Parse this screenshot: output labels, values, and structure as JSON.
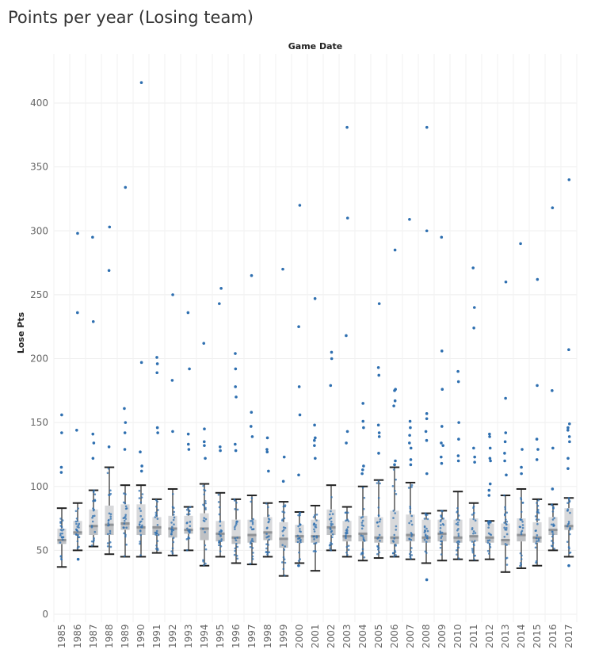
{
  "page": {
    "title": "Points per year (Losing team)"
  },
  "chart_data": {
    "type": "box",
    "title": "Points per year (Losing team)",
    "xlabel": "Game Date",
    "ylabel": "Lose Pts",
    "ylim": [
      0,
      430
    ],
    "yticks": [
      0,
      50,
      100,
      150,
      200,
      250,
      300,
      350,
      400
    ],
    "grid": true,
    "legend": "none",
    "colors": {
      "point": "#2e6fb0",
      "box_upper": "#d8d9db",
      "box_lower": "#bfc1c4",
      "median": "#8f9296",
      "whisker": "#222222"
    },
    "categories": [
      "1985",
      "1986",
      "1987",
      "1988",
      "1989",
      "1990",
      "1991",
      "1992",
      "1993",
      "1994",
      "1995",
      "1996",
      "1997",
      "1998",
      "1999",
      "2000",
      "2001",
      "2002",
      "2003",
      "2004",
      "2005",
      "2006",
      "2007",
      "2008",
      "2009",
      "2010",
      "2011",
      "2012",
      "2013",
      "2014",
      "2015",
      "2016",
      "2017"
    ],
    "boxes": [
      {
        "min": 37,
        "q1": 55,
        "median": 58,
        "q3": 67,
        "max": 83
      },
      {
        "min": 50,
        "q1": 62,
        "median": 64,
        "q3": 73,
        "max": 87
      },
      {
        "min": 53,
        "q1": 62,
        "median": 69,
        "q3": 82,
        "max": 97
      },
      {
        "min": 47,
        "q1": 62,
        "median": 70,
        "q3": 85,
        "max": 115
      },
      {
        "min": 45,
        "q1": 66,
        "median": 71,
        "q3": 86,
        "max": 101
      },
      {
        "min": 45,
        "q1": 62,
        "median": 68,
        "q3": 86,
        "max": 101
      },
      {
        "min": 48,
        "q1": 62,
        "median": 68,
        "q3": 76,
        "max": 90
      },
      {
        "min": 46,
        "q1": 60,
        "median": 67,
        "q3": 77,
        "max": 98
      },
      {
        "min": 50,
        "q1": 63,
        "median": 66,
        "q3": 77,
        "max": 84
      },
      {
        "min": 38,
        "q1": 58,
        "median": 67,
        "q3": 79,
        "max": 102
      },
      {
        "min": 45,
        "q1": 57,
        "median": 63,
        "q3": 73,
        "max": 95
      },
      {
        "min": 40,
        "q1": 55,
        "median": 60,
        "q3": 74,
        "max": 90
      },
      {
        "min": 39,
        "q1": 56,
        "median": 62,
        "q3": 74,
        "max": 93
      },
      {
        "min": 45,
        "q1": 58,
        "median": 64,
        "q3": 76,
        "max": 87
      },
      {
        "min": 30,
        "q1": 52,
        "median": 59,
        "q3": 72,
        "max": 88
      },
      {
        "min": 40,
        "q1": 56,
        "median": 61,
        "q3": 70,
        "max": 80
      },
      {
        "min": 34,
        "q1": 56,
        "median": 61,
        "q3": 74,
        "max": 85
      },
      {
        "min": 50,
        "q1": 62,
        "median": 68,
        "q3": 82,
        "max": 101
      },
      {
        "min": 45,
        "q1": 57,
        "median": 61,
        "q3": 73,
        "max": 84
      },
      {
        "min": 42,
        "q1": 57,
        "median": 63,
        "q3": 77,
        "max": 100
      },
      {
        "min": 44,
        "q1": 56,
        "median": 60,
        "q3": 76,
        "max": 105
      },
      {
        "min": 45,
        "q1": 55,
        "median": 60,
        "q3": 81,
        "max": 115
      },
      {
        "min": 43,
        "q1": 57,
        "median": 62,
        "q3": 78,
        "max": 103
      },
      {
        "min": 40,
        "q1": 56,
        "median": 60,
        "q3": 74,
        "max": 79
      },
      {
        "min": 42,
        "q1": 57,
        "median": 63,
        "q3": 74,
        "max": 81
      },
      {
        "min": 43,
        "q1": 56,
        "median": 60,
        "q3": 74,
        "max": 96
      },
      {
        "min": 42,
        "q1": 57,
        "median": 61,
        "q3": 75,
        "max": 87
      },
      {
        "min": 43,
        "q1": 56,
        "median": 60,
        "q3": 71,
        "max": 73
      },
      {
        "min": 33,
        "q1": 54,
        "median": 58,
        "q3": 71,
        "max": 93
      },
      {
        "min": 36,
        "q1": 57,
        "median": 62,
        "q3": 75,
        "max": 98
      },
      {
        "min": 38,
        "q1": 56,
        "median": 60,
        "q3": 72,
        "max": 90
      },
      {
        "min": 50,
        "q1": 62,
        "median": 66,
        "q3": 76,
        "max": 86
      },
      {
        "min": 45,
        "q1": 66,
        "median": 69,
        "q3": 83,
        "max": 91
      }
    ],
    "outliers": [
      [
        156,
        142,
        115,
        111
      ],
      [
        298,
        236,
        144,
        43
      ],
      [
        295,
        229,
        141,
        134,
        122
      ],
      [
        303,
        269,
        131
      ],
      [
        334,
        161,
        150,
        142,
        129
      ],
      [
        416,
        197,
        127,
        116,
        112
      ],
      [
        201,
        196,
        189,
        146,
        142
      ],
      [
        250,
        183,
        143
      ],
      [
        236,
        192,
        141,
        133,
        129
      ],
      [
        212,
        145,
        135,
        132,
        122
      ],
      [
        255,
        243,
        131,
        128
      ],
      [
        204,
        192,
        178,
        170,
        133,
        128
      ],
      [
        265,
        158,
        147,
        139
      ],
      [
        138,
        129,
        127,
        112
      ],
      [
        270,
        123,
        104
      ],
      [
        320,
        225,
        178,
        156,
        109,
        38
      ],
      [
        247,
        148,
        138,
        136,
        132,
        122
      ],
      [
        205,
        200,
        179
      ],
      [
        381,
        310,
        218,
        143,
        134
      ],
      [
        165,
        151,
        146,
        116,
        113,
        110
      ],
      [
        243,
        193,
        187,
        148,
        142,
        139,
        126
      ],
      [
        285,
        176,
        175,
        167,
        163,
        120,
        117
      ],
      [
        309,
        151,
        146,
        140,
        134,
        130,
        121,
        117
      ],
      [
        381,
        300,
        157,
        153,
        143,
        136,
        110,
        27
      ],
      [
        295,
        206,
        176,
        147,
        134,
        132,
        123,
        118
      ],
      [
        190,
        182,
        150,
        137,
        124,
        120
      ],
      [
        271,
        240,
        224,
        130,
        123,
        119
      ],
      [
        141,
        139,
        130,
        122,
        120,
        102,
        97,
        93
      ],
      [
        260,
        169,
        142,
        135,
        126,
        120,
        109
      ],
      [
        290,
        129,
        115,
        110
      ],
      [
        262,
        179,
        137,
        129,
        121
      ],
      [
        318,
        175,
        130,
        98
      ],
      [
        340,
        207,
        149,
        146,
        144,
        139,
        135,
        122,
        114,
        38
      ]
    ]
  }
}
